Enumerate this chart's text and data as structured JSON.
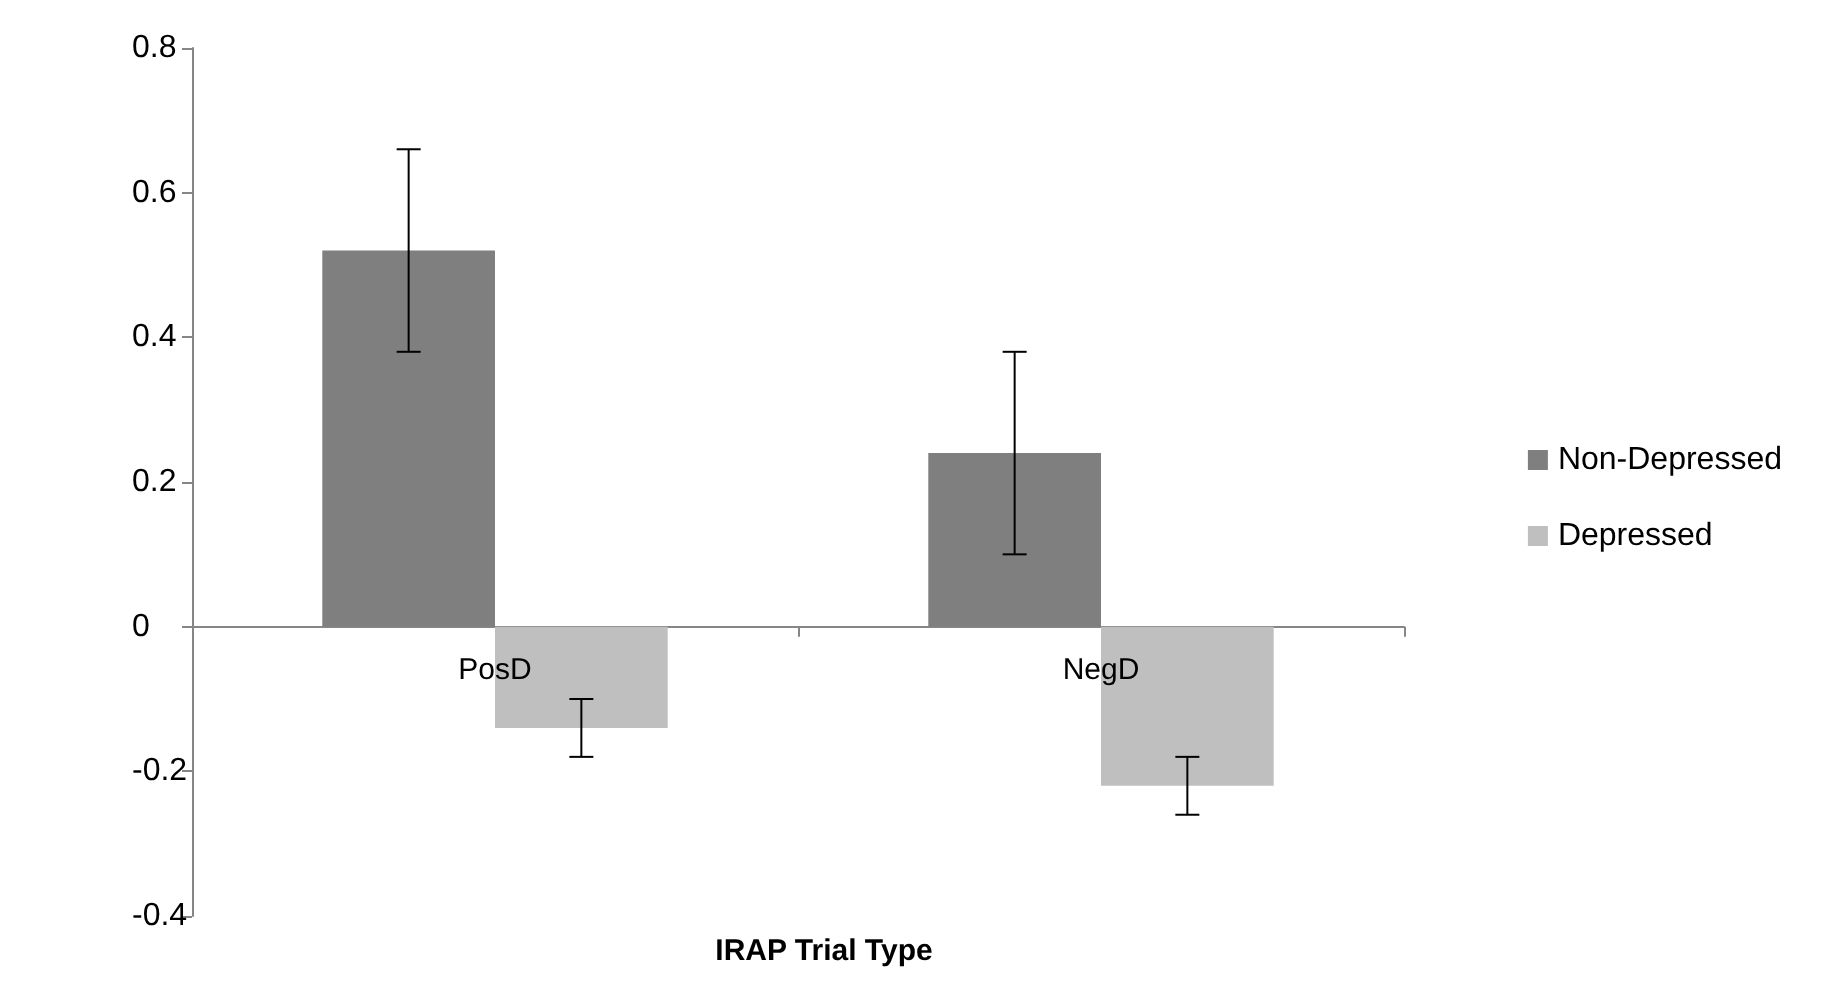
{
  "chart_data": {
    "type": "bar",
    "xlabel": "IRAP Trial Type",
    "categories": [
      "PosD",
      "NegD"
    ],
    "series": [
      {
        "name": "Non-Depressed",
        "color": "#7f7f7f",
        "values": [
          0.52,
          0.24
        ],
        "errors": [
          0.14,
          0.14
        ]
      },
      {
        "name": "Depressed",
        "color": "#bfbfbf",
        "values": [
          -0.14,
          -0.22
        ],
        "errors": [
          0.04,
          0.04
        ]
      }
    ],
    "ylim": [
      -0.4,
      0.8
    ],
    "yticks": [
      -0.4,
      -0.2,
      0,
      0.2,
      0.4,
      0.6,
      0.8
    ],
    "legend": "right"
  }
}
